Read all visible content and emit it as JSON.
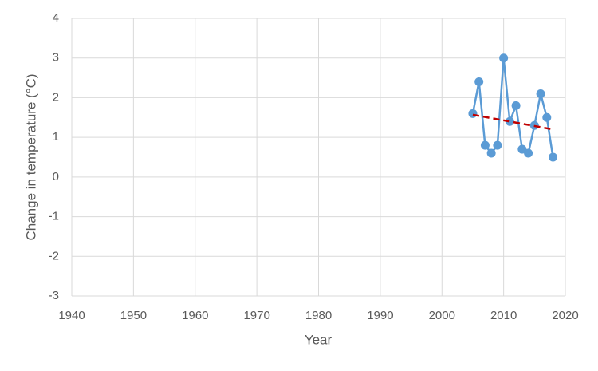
{
  "chart_data": {
    "type": "line",
    "x_label": "Year",
    "y_label": "Change in temperature (°C)",
    "x": [
      2005,
      2006,
      2007,
      2008,
      2009,
      2010,
      2011,
      2012,
      2013,
      2014,
      2015,
      2016,
      2017,
      2018
    ],
    "series": [
      {
        "color": "#5b9bd5",
        "values": [
          1.6,
          2.4,
          0.8,
          0.6,
          0.8,
          3.0,
          1.4,
          1.8,
          0.7,
          0.6,
          1.3,
          2.1,
          1.5,
          0.5
        ]
      }
    ],
    "trendline": {
      "x": [
        2005,
        2018
      ],
      "values": [
        1.57,
        1.2
      ],
      "color": "#c00000"
    },
    "xlim": [
      1940,
      2020
    ],
    "xticks": [
      1940,
      1950,
      1960,
      1970,
      1980,
      1990,
      2000,
      2010,
      2020
    ],
    "ylim": [
      -3,
      4
    ],
    "yticks": [
      -3,
      -2,
      -1,
      0,
      1,
      2,
      3,
      4
    ],
    "grid": true
  }
}
